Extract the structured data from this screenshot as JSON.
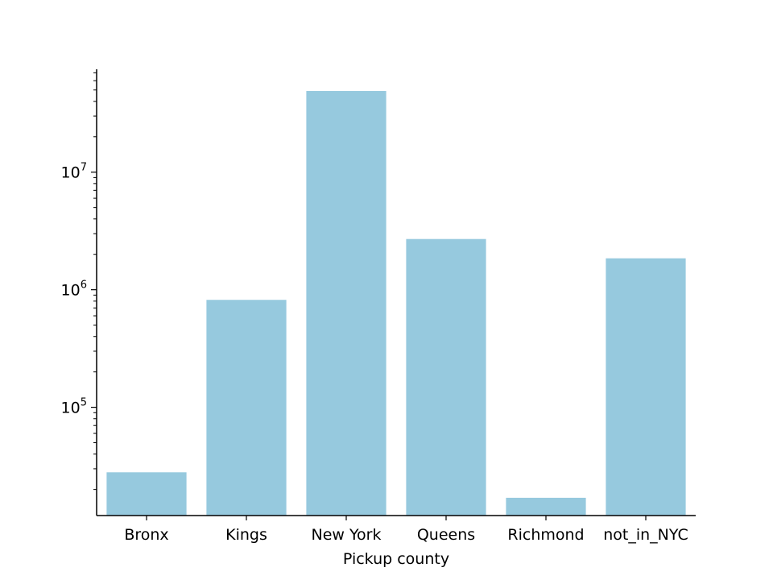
{
  "chart_data": {
    "type": "bar",
    "title": "",
    "xlabel": "Pickup county",
    "ylabel": "",
    "y_scale": "log",
    "ylim": [
      12000,
      75000000
    ],
    "y_ticks": [
      {
        "value": 100000,
        "base": "10",
        "exp": "5"
      },
      {
        "value": 1000000,
        "base": "10",
        "exp": "6"
      },
      {
        "value": 10000000,
        "base": "10",
        "exp": "7"
      }
    ],
    "categories": [
      "Bronx",
      "Kings",
      "New York",
      "Queens",
      "Richmond",
      "not_in_NYC"
    ],
    "values": [
      28000,
      820000,
      49000000,
      2700000,
      17000,
      1850000
    ],
    "bar_color": "#96c9de",
    "axis_color": "#000000",
    "grid": false,
    "legend": "none"
  }
}
